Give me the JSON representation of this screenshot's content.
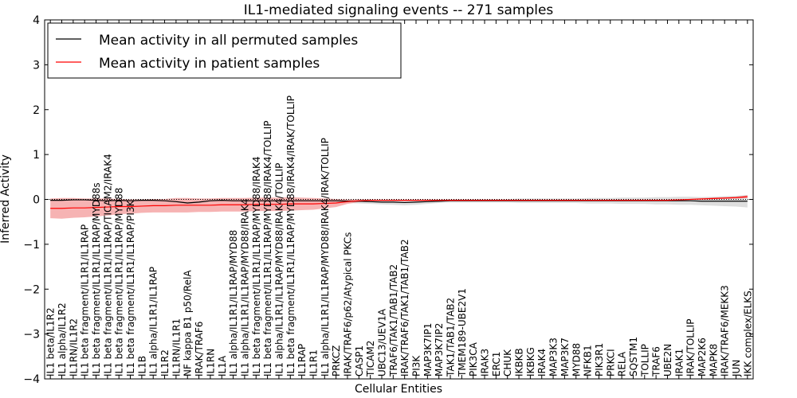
{
  "chart_data": {
    "type": "line",
    "title": "IL1-mediated signaling events -- 271 samples",
    "xlabel": "Cellular Entities",
    "ylabel": "Inferred Activity",
    "ylim": [
      -4,
      4
    ],
    "yticks": [
      -4,
      -3,
      -2,
      -1,
      0,
      1,
      2,
      3,
      4
    ],
    "ytick_labels": [
      "−4",
      "−3",
      "−2",
      "−1",
      "0",
      "1",
      "2",
      "3",
      "4"
    ],
    "grid": false,
    "legend_position": "top-left",
    "categories": [
      "IL1 beta/IL1R2",
      "IL1 alpha/IL1R2",
      "IL1RN/IL1R2",
      "IL1 beta fragment/IL1R1/IL1RAP",
      "IL1 beta fragment/IL1R1/IL1RAP/MYD88s",
      "IL1 beta fragment/IL1R1/IL1RAP/TICAM2/IRAK4",
      "IL1 beta fragment/IL1R1/IL1RAP/MYD88",
      "IL1 beta fragment/IL1R1/IL1RAP/PI3K",
      "IL1B",
      "IL1 alpha/IL1R1/IL1RAP",
      "IL1R2",
      "IL1RN/IL1R1",
      "NF kappa B1 p50/RelA",
      "IRAK/TRAF6",
      "IL1RN",
      "IL1A",
      "IL1 alpha/IL1R1/IL1RAP/MYD88",
      "IL1 alpha/IL1R1/IL1RAP/MYD88/IRAK4",
      "IL1 beta fragment/IL1R1/IL1RAP/MYD88/IRAK4",
      "IL1 beta fragment/IL1R1/IL1RAP/MYD88/IRAK4/TOLLIP",
      "IL1 alpha/IL1R1/IL1RAP/MYD88/IRAK4/TOLLIP",
      "IL1 beta fragment/IL1R1/IL1RAP/MYD88/IRAK4/IRAK/TOLLIP",
      "IL1RAP",
      "IL1R1",
      "IL1 alpha/IL1R1/IL1RAP/MYD88/IRAK4/IRAK/TOLLIP",
      "PRKCZ",
      "IRAK/TRAF6/p62/Atypical PKCs",
      "CASP1",
      "TICAM2",
      "UBC13/UEV1A",
      "TRAF6/TAK1/TAB1/TAB2",
      "IRAK/TRAF6/TAK1/TAB1/TAB2",
      "PI3K",
      "MAP3K7IP1",
      "MAP3K7IP2",
      "TAK1/TAB1/TAB2",
      "TMEM189-UBE2V1",
      "PIK3CA",
      "IRAK3",
      "ERC1",
      "CHUK",
      "IKBKB",
      "IKBKG",
      "IRAK4",
      "MAP3K3",
      "MAP3K7",
      "MYD88",
      "NFKB1",
      "PIK3R1",
      "PRKCI",
      "RELA",
      "SQSTM1",
      "TOLLIP",
      "TRAF6",
      "UBE2N",
      "IRAK1",
      "IRAK/TOLLIP",
      "MAP2K6",
      "MAPK8",
      "IRAK/TRAF6/MEKK3",
      "JUN",
      "IKK complex/ELKS"
    ],
    "series": [
      {
        "name": "Mean activity in all permuted samples",
        "color": "#000000",
        "values": [
          -0.02,
          -0.02,
          -0.01,
          -0.01,
          -0.02,
          -0.03,
          -0.02,
          -0.03,
          -0.02,
          -0.02,
          -0.03,
          -0.05,
          -0.08,
          -0.06,
          -0.03,
          -0.02,
          -0.03,
          -0.03,
          -0.03,
          -0.03,
          -0.03,
          -0.03,
          -0.03,
          -0.03,
          -0.03,
          -0.03,
          -0.04,
          -0.04,
          -0.05,
          -0.06,
          -0.06,
          -0.07,
          -0.06,
          -0.05,
          -0.04,
          -0.03,
          -0.03,
          -0.03,
          -0.03,
          -0.03,
          -0.03,
          -0.03,
          -0.03,
          -0.03,
          -0.03,
          -0.03,
          -0.03,
          -0.03,
          -0.03,
          -0.03,
          -0.03,
          -0.03,
          -0.03,
          -0.03,
          -0.03,
          -0.03,
          -0.03,
          -0.04,
          -0.04,
          -0.04,
          -0.04,
          -0.04
        ],
        "band_lower": [
          -0.03,
          -0.03,
          -0.02,
          -0.02,
          -0.03,
          -0.05,
          -0.04,
          -0.05,
          -0.04,
          -0.04,
          -0.05,
          -0.07,
          -0.1,
          -0.08,
          -0.05,
          -0.04,
          -0.05,
          -0.05,
          -0.05,
          -0.05,
          -0.05,
          -0.05,
          -0.05,
          -0.05,
          -0.05,
          -0.06,
          -0.08,
          -0.09,
          -0.1,
          -0.11,
          -0.12,
          -0.13,
          -0.12,
          -0.1,
          -0.08,
          -0.07,
          -0.07,
          -0.07,
          -0.07,
          -0.07,
          -0.07,
          -0.08,
          -0.08,
          -0.08,
          -0.08,
          -0.08,
          -0.08,
          -0.09,
          -0.09,
          -0.09,
          -0.1,
          -0.1,
          -0.1,
          -0.11,
          -0.11,
          -0.12,
          -0.12,
          -0.13,
          -0.14,
          -0.15,
          -0.16,
          -0.18
        ],
        "band_upper": [
          -0.01,
          -0.01,
          0.0,
          0.0,
          -0.01,
          -0.01,
          0.0,
          -0.01,
          0.0,
          0.0,
          -0.01,
          -0.03,
          -0.06,
          -0.04,
          -0.01,
          0.0,
          -0.01,
          -0.01,
          -0.01,
          -0.01,
          -0.01,
          -0.01,
          -0.01,
          -0.01,
          -0.01,
          0.0,
          0.0,
          0.01,
          0.0,
          -0.01,
          0.0,
          -0.01,
          0.0,
          0.0,
          0.0,
          0.01,
          0.01,
          0.01,
          0.01,
          0.01,
          0.01,
          0.02,
          0.02,
          0.02,
          0.02,
          0.02,
          0.02,
          0.03,
          0.03,
          0.03,
          0.04,
          0.04,
          0.04,
          0.05,
          0.05,
          0.06,
          0.06,
          0.05,
          0.06,
          0.07,
          0.08,
          0.1
        ]
      },
      {
        "name": "Mean activity in patient samples",
        "color": "#ff0000",
        "values": [
          -0.2,
          -0.2,
          -0.19,
          -0.19,
          -0.18,
          -0.17,
          -0.16,
          -0.16,
          -0.15,
          -0.14,
          -0.14,
          -0.13,
          -0.13,
          -0.13,
          -0.13,
          -0.12,
          -0.12,
          -0.12,
          -0.11,
          -0.11,
          -0.11,
          -0.1,
          -0.1,
          -0.1,
          -0.09,
          -0.08,
          -0.05,
          -0.03,
          -0.02,
          -0.02,
          -0.02,
          -0.02,
          -0.02,
          -0.02,
          -0.02,
          -0.02,
          -0.02,
          -0.02,
          -0.02,
          -0.02,
          -0.02,
          -0.02,
          -0.02,
          -0.02,
          -0.02,
          -0.02,
          -0.02,
          -0.02,
          -0.02,
          -0.02,
          -0.02,
          -0.02,
          -0.02,
          -0.02,
          -0.02,
          -0.01,
          0.0,
          0.01,
          0.02,
          0.03,
          0.04,
          0.06
        ],
        "band_lower": [
          -0.42,
          -0.43,
          -0.41,
          -0.4,
          -0.38,
          -0.36,
          -0.33,
          -0.32,
          -0.3,
          -0.29,
          -0.29,
          -0.29,
          -0.29,
          -0.28,
          -0.28,
          -0.27,
          -0.27,
          -0.27,
          -0.26,
          -0.26,
          -0.26,
          -0.25,
          -0.24,
          -0.23,
          -0.2,
          -0.17,
          -0.1,
          -0.06,
          -0.03,
          -0.03,
          -0.03,
          -0.03,
          -0.03,
          -0.03,
          -0.03,
          -0.03,
          -0.03,
          -0.03,
          -0.03,
          -0.03,
          -0.03,
          -0.03,
          -0.03,
          -0.03,
          -0.03,
          -0.03,
          -0.03,
          -0.03,
          -0.03,
          -0.03,
          -0.03,
          -0.03,
          -0.03,
          -0.03,
          -0.03,
          -0.02,
          -0.01,
          -0.01,
          0.0,
          0.01,
          0.02,
          0.03
        ],
        "band_upper": [
          0.02,
          0.03,
          0.03,
          0.02,
          0.02,
          0.02,
          0.01,
          0.0,
          0.0,
          0.01,
          0.01,
          0.03,
          0.03,
          0.02,
          0.02,
          0.03,
          0.03,
          0.03,
          0.04,
          0.04,
          0.04,
          0.05,
          0.04,
          0.03,
          0.02,
          0.01,
          0.0,
          0.0,
          -0.01,
          -0.01,
          -0.01,
          -0.01,
          -0.01,
          -0.01,
          -0.01,
          -0.01,
          -0.01,
          -0.01,
          -0.01,
          -0.01,
          -0.01,
          -0.01,
          -0.01,
          -0.01,
          -0.01,
          -0.01,
          -0.01,
          -0.01,
          -0.01,
          -0.01,
          -0.01,
          -0.01,
          -0.01,
          -0.01,
          -0.01,
          0.0,
          0.01,
          0.03,
          0.04,
          0.05,
          0.06,
          0.09
        ]
      }
    ],
    "colors": {
      "permuted_band": "#c8c8c8",
      "patient_band": "#f08080",
      "zero_line": "#000000"
    }
  }
}
